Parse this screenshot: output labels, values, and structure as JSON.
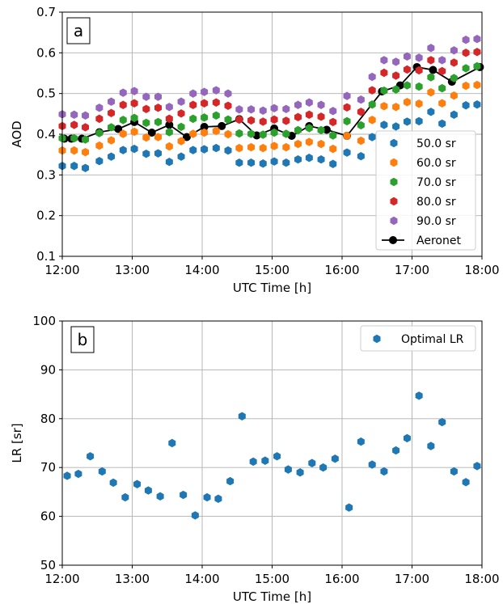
{
  "chart_data": [
    {
      "panel_label": "a",
      "type": "scatter",
      "xlabel": "UTC Time [h]",
      "ylabel": "AOD",
      "xlim": [
        12,
        18
      ],
      "ylim": [
        0.1,
        0.7
      ],
      "xticks": [
        12,
        13,
        14,
        15,
        16,
        17,
        18
      ],
      "xtick_labels": [
        "12:00",
        "13:00",
        "14:00",
        "15:00",
        "16:00",
        "17:00",
        "18:00"
      ],
      "yticks": [
        0.1,
        0.2,
        0.3,
        0.4,
        0.5,
        0.6,
        0.7
      ],
      "ytick_labels": [
        "0.1",
        "0.2",
        "0.3",
        "0.4",
        "0.5",
        "0.6",
        "0.7"
      ],
      "grid": true,
      "legend_position": "lower-right",
      "x": [
        12.0,
        12.17,
        12.33,
        12.53,
        12.7,
        12.87,
        13.03,
        13.2,
        13.37,
        13.53,
        13.7,
        13.87,
        14.03,
        14.2,
        14.37,
        14.53,
        14.7,
        14.87,
        15.03,
        15.2,
        15.37,
        15.53,
        15.7,
        15.87,
        16.07,
        16.27,
        16.43,
        16.6,
        16.77,
        16.93,
        17.1,
        17.27,
        17.43,
        17.6,
        17.77,
        17.93
      ],
      "series": [
        {
          "name": "50.0 sr",
          "color": "#1f77b4",
          "values": [
            0.322,
            0.322,
            0.317,
            0.334,
            0.345,
            0.361,
            0.364,
            0.352,
            0.353,
            0.332,
            0.345,
            0.361,
            0.363,
            0.366,
            0.36,
            0.33,
            0.33,
            0.328,
            0.333,
            0.33,
            0.338,
            0.342,
            0.338,
            0.327,
            0.355,
            0.346,
            0.393,
            0.423,
            0.419,
            0.431,
            0.432,
            0.455,
            0.426,
            0.448,
            0.471,
            0.473
          ]
        },
        {
          "name": "60.0 sr",
          "color": "#ff7f0e",
          "values": [
            0.36,
            0.36,
            0.356,
            0.372,
            0.385,
            0.401,
            0.406,
            0.392,
            0.393,
            0.37,
            0.383,
            0.401,
            0.404,
            0.408,
            0.4,
            0.366,
            0.368,
            0.366,
            0.371,
            0.368,
            0.376,
            0.381,
            0.376,
            0.364,
            0.396,
            0.384,
            0.435,
            0.469,
            0.467,
            0.479,
            0.475,
            0.503,
            0.476,
            0.495,
            0.519,
            0.521
          ]
        },
        {
          "name": "70.0 sr",
          "color": "#2ca02c",
          "values": [
            0.39,
            0.39,
            0.387,
            0.403,
            0.417,
            0.435,
            0.44,
            0.428,
            0.43,
            0.405,
            0.418,
            0.438,
            0.441,
            0.446,
            0.436,
            0.402,
            0.401,
            0.399,
            0.404,
            0.401,
            0.41,
            0.415,
            0.41,
            0.397,
            0.432,
            0.422,
            0.473,
            0.507,
            0.51,
            0.52,
            0.517,
            0.54,
            0.513,
            0.538,
            0.562,
            0.567
          ]
        },
        {
          "name": "80.0 sr",
          "color": "#d62728",
          "values": [
            0.42,
            0.423,
            0.417,
            0.438,
            0.452,
            0.472,
            0.476,
            0.462,
            0.465,
            0.438,
            0.451,
            0.472,
            0.476,
            0.478,
            0.47,
            0.436,
            0.434,
            0.431,
            0.436,
            0.433,
            0.442,
            0.448,
            0.443,
            0.43,
            0.466,
            0.455,
            0.508,
            0.551,
            0.544,
            0.559,
            0.557,
            0.582,
            0.555,
            0.576,
            0.6,
            0.602
          ]
        },
        {
          "name": "90.0 sr",
          "color": "#9467bd",
          "values": [
            0.449,
            0.448,
            0.446,
            0.465,
            0.48,
            0.502,
            0.506,
            0.492,
            0.492,
            0.467,
            0.48,
            0.5,
            0.504,
            0.508,
            0.5,
            0.461,
            0.461,
            0.458,
            0.464,
            0.462,
            0.472,
            0.478,
            0.472,
            0.457,
            0.494,
            0.485,
            0.541,
            0.582,
            0.578,
            0.591,
            0.588,
            0.612,
            0.582,
            0.606,
            0.632,
            0.634
          ]
        },
        {
          "name": "Aeronet",
          "color": "#000000",
          "line": true,
          "x": [
            12.03,
            12.13,
            12.28,
            12.53,
            12.8,
            13.03,
            13.28,
            13.53,
            13.78,
            14.03,
            14.28,
            14.53,
            14.78,
            15.03,
            15.28,
            15.53,
            15.78,
            16.07,
            16.57,
            16.83,
            17.07,
            17.3,
            17.57,
            17.97
          ],
          "values": [
            0.389,
            0.389,
            0.389,
            0.405,
            0.413,
            0.43,
            0.404,
            0.423,
            0.393,
            0.418,
            0.42,
            0.437,
            0.397,
            0.414,
            0.396,
            0.42,
            0.411,
            0.396,
            0.505,
            0.52,
            0.565,
            0.558,
            0.529,
            0.565
          ]
        }
      ]
    },
    {
      "panel_label": "b",
      "type": "scatter",
      "xlabel": "UTC Time [h]",
      "ylabel": "LR [sr]",
      "xlim": [
        12,
        18
      ],
      "ylim": [
        50,
        100
      ],
      "xticks": [
        12,
        13,
        14,
        15,
        16,
        17,
        18
      ],
      "xtick_labels": [
        "12:00",
        "13:00",
        "14:00",
        "15:00",
        "16:00",
        "17:00",
        "18:00"
      ],
      "yticks": [
        50,
        60,
        70,
        80,
        90,
        100
      ],
      "ytick_labels": [
        "50",
        "60",
        "70",
        "80",
        "90",
        "100"
      ],
      "grid": true,
      "legend_position": "top-right",
      "series": [
        {
          "name": "Optimal LR",
          "color": "#1f77b4",
          "x": [
            12.07,
            12.23,
            12.4,
            12.57,
            12.73,
            12.9,
            13.07,
            13.23,
            13.4,
            13.57,
            13.73,
            13.9,
            14.07,
            14.23,
            14.4,
            14.57,
            14.73,
            14.9,
            15.07,
            15.23,
            15.4,
            15.57,
            15.73,
            15.9,
            16.1,
            16.27,
            16.43,
            16.6,
            16.77,
            16.93,
            17.1,
            17.27,
            17.43,
            17.6,
            17.77,
            17.93
          ],
          "values": [
            68.3,
            68.7,
            72.3,
            69.2,
            66.9,
            63.9,
            66.6,
            65.3,
            64.1,
            75.0,
            64.4,
            60.2,
            63.9,
            63.6,
            67.2,
            80.5,
            71.2,
            71.4,
            72.3,
            69.6,
            69.0,
            70.9,
            70.0,
            71.8,
            61.8,
            75.3,
            70.6,
            69.2,
            73.5,
            76.0,
            84.7,
            74.4,
            79.3,
            69.2,
            67.0,
            70.3
          ]
        }
      ]
    }
  ]
}
